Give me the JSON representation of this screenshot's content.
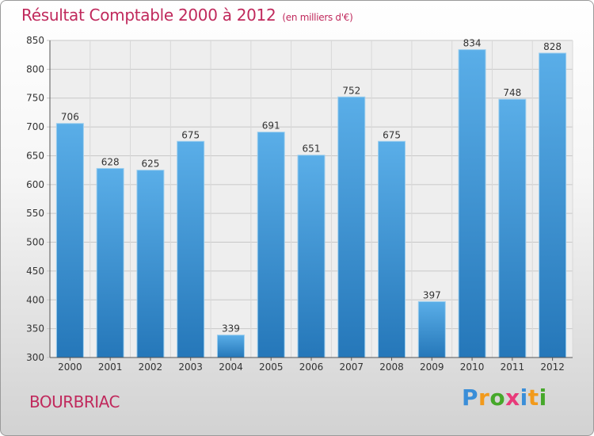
{
  "chart_data": {
    "type": "bar",
    "title": "Résultat Comptable 2000 à 2012",
    "subtitle": "(en milliers d'€)",
    "categories": [
      "2000",
      "2001",
      "2002",
      "2003",
      "2004",
      "2005",
      "2006",
      "2007",
      "2008",
      "2009",
      "2010",
      "2011",
      "2012"
    ],
    "values": [
      706,
      628,
      625,
      675,
      339,
      691,
      651,
      752,
      675,
      397,
      834,
      748,
      828
    ],
    "ylim": [
      300,
      850
    ],
    "yticks": [
      300,
      350,
      400,
      450,
      500,
      550,
      600,
      650,
      700,
      750,
      800,
      850
    ],
    "grid": true,
    "colors": {
      "bar_top": "#5aaee8",
      "bar_bottom": "#2577b9",
      "title": "#c0295c"
    }
  },
  "commune": "BOURBRIAC",
  "logo": {
    "letters": [
      "P",
      "r",
      "o",
      "x",
      "i",
      "t",
      "i"
    ],
    "colors": [
      "#3a8ed8",
      "#f29a1c",
      "#46a82a",
      "#e83a7a",
      "#3a8ed8",
      "#f29a1c",
      "#46a82a"
    ]
  }
}
